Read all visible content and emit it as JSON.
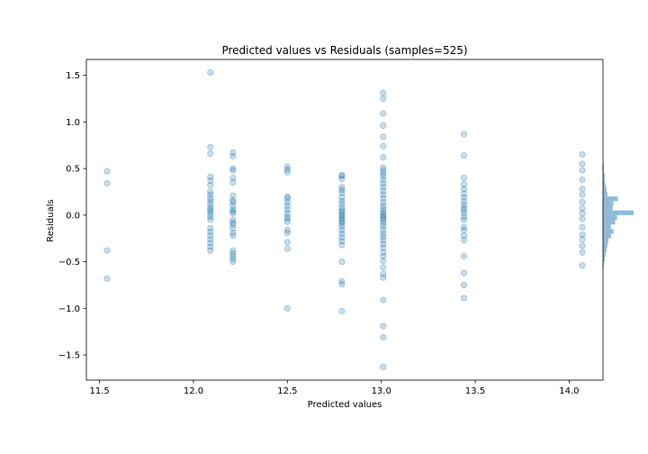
{
  "chart_data": {
    "type": "scatter",
    "title": "Predicted values vs Residuals (samples=525)",
    "xlabel": "Predicted values",
    "ylabel": "Residuals",
    "xlim": [
      11.43,
      14.18
    ],
    "ylim": [
      -1.77,
      1.67
    ],
    "xticks": [
      11.5,
      12.0,
      12.5,
      13.0,
      13.5,
      14.0
    ],
    "yticks": [
      -1.5,
      -1.0,
      -0.5,
      0.0,
      0.5,
      1.0,
      1.5
    ],
    "grid": false,
    "legend": "none",
    "point_color": "#1f77b4",
    "point_alpha": 0.25,
    "columns": [
      {
        "x": 11.54,
        "y": [
          0.47,
          0.34,
          -0.38,
          -0.68
        ]
      },
      {
        "x": 12.09,
        "y": [
          1.53,
          0.73,
          0.66,
          0.41,
          0.37,
          0.32,
          0.25,
          0.22,
          0.18,
          0.15,
          0.12,
          0.08,
          0.06,
          0.04,
          0.01,
          -0.02,
          -0.05,
          -0.14,
          -0.18,
          -0.22,
          -0.26,
          -0.3,
          -0.34,
          -0.38
        ]
      },
      {
        "x": 12.21,
        "y": [
          0.67,
          0.63,
          0.5,
          0.48,
          0.4,
          0.35,
          0.21,
          0.16,
          0.14,
          0.1,
          0.06,
          0.04,
          0.02,
          -0.05,
          -0.08,
          -0.1,
          -0.14,
          -0.19,
          -0.22,
          -0.38,
          -0.41,
          -0.44,
          -0.47,
          -0.5
        ]
      },
      {
        "x": 12.5,
        "y": [
          0.52,
          0.49,
          0.46,
          0.2,
          0.18,
          0.14,
          0.1,
          0.06,
          0.02,
          -0.02,
          -0.04,
          -0.07,
          -0.16,
          -0.19,
          -0.29,
          -0.36,
          -1.0
        ]
      },
      {
        "x": 12.79,
        "y": [
          0.43,
          0.42,
          0.39,
          0.3,
          0.27,
          0.24,
          0.19,
          0.15,
          0.12,
          0.08,
          0.05,
          0.03,
          0.01,
          -0.01,
          -0.03,
          -0.05,
          -0.07,
          -0.09,
          -0.12,
          -0.16,
          -0.2,
          -0.24,
          -0.28,
          -0.32,
          -0.5,
          -0.71,
          -0.74,
          -1.03
        ]
      },
      {
        "x": 13.01,
        "y": [
          1.31,
          1.25,
          1.09,
          0.96,
          0.84,
          0.74,
          0.62,
          0.51,
          0.48,
          0.45,
          0.42,
          0.38,
          0.34,
          0.3,
          0.26,
          0.22,
          0.18,
          0.14,
          0.1,
          0.07,
          0.04,
          0.02,
          0.0,
          -0.02,
          -0.04,
          -0.06,
          -0.09,
          -0.12,
          -0.16,
          -0.2,
          -0.23,
          -0.27,
          -0.31,
          -0.35,
          -0.4,
          -0.44,
          -0.49,
          -0.56,
          -0.63,
          -0.67,
          -0.91,
          -1.19,
          -1.31,
          -1.63
        ]
      },
      {
        "x": 13.44,
        "y": [
          0.87,
          0.64,
          0.4,
          0.33,
          0.28,
          0.23,
          0.19,
          0.15,
          0.11,
          0.08,
          0.05,
          0.02,
          -0.02,
          -0.05,
          -0.13,
          -0.16,
          -0.22,
          -0.27,
          -0.44,
          -0.62,
          -0.75,
          -0.89
        ]
      },
      {
        "x": 14.07,
        "y": [
          0.65,
          0.55,
          0.48,
          0.38,
          0.28,
          0.22,
          0.14,
          0.07,
          0.02,
          -0.04,
          -0.13,
          -0.21,
          -0.26,
          -0.33,
          -0.4,
          -0.54
        ]
      }
    ],
    "histogram": {
      "orientation": "horizontal",
      "bins": [
        {
          "y0": 0.5,
          "y1": 0.55,
          "count": 1
        },
        {
          "y0": 0.45,
          "y1": 0.5,
          "count": 1
        },
        {
          "y0": 0.4,
          "y1": 0.45,
          "count": 2
        },
        {
          "y0": 0.35,
          "y1": 0.4,
          "count": 2
        },
        {
          "y0": 0.3,
          "y1": 0.35,
          "count": 3
        },
        {
          "y0": 0.25,
          "y1": 0.3,
          "count": 4
        },
        {
          "y0": 0.2,
          "y1": 0.25,
          "count": 5
        },
        {
          "y0": 0.15,
          "y1": 0.2,
          "count": 17
        },
        {
          "y0": 0.1,
          "y1": 0.15,
          "count": 12
        },
        {
          "y0": 0.05,
          "y1": 0.1,
          "count": 11
        },
        {
          "y0": 0.0,
          "y1": 0.05,
          "count": 35
        },
        {
          "y0": -0.05,
          "y1": 0.0,
          "count": 16
        },
        {
          "y0": -0.1,
          "y1": -0.05,
          "count": 14
        },
        {
          "y0": -0.15,
          "y1": -0.1,
          "count": 9
        },
        {
          "y0": -0.2,
          "y1": -0.15,
          "count": 12
        },
        {
          "y0": -0.25,
          "y1": -0.2,
          "count": 9
        },
        {
          "y0": -0.3,
          "y1": -0.25,
          "count": 6
        },
        {
          "y0": -0.35,
          "y1": -0.3,
          "count": 5
        },
        {
          "y0": -0.4,
          "y1": -0.35,
          "count": 4
        },
        {
          "y0": -0.45,
          "y1": -0.4,
          "count": 3
        },
        {
          "y0": -0.5,
          "y1": -0.45,
          "count": 2
        },
        {
          "y0": -0.55,
          "y1": -0.5,
          "count": 1
        }
      ],
      "max_count": 35,
      "color": "#1f77b4",
      "alpha": 0.5
    }
  }
}
